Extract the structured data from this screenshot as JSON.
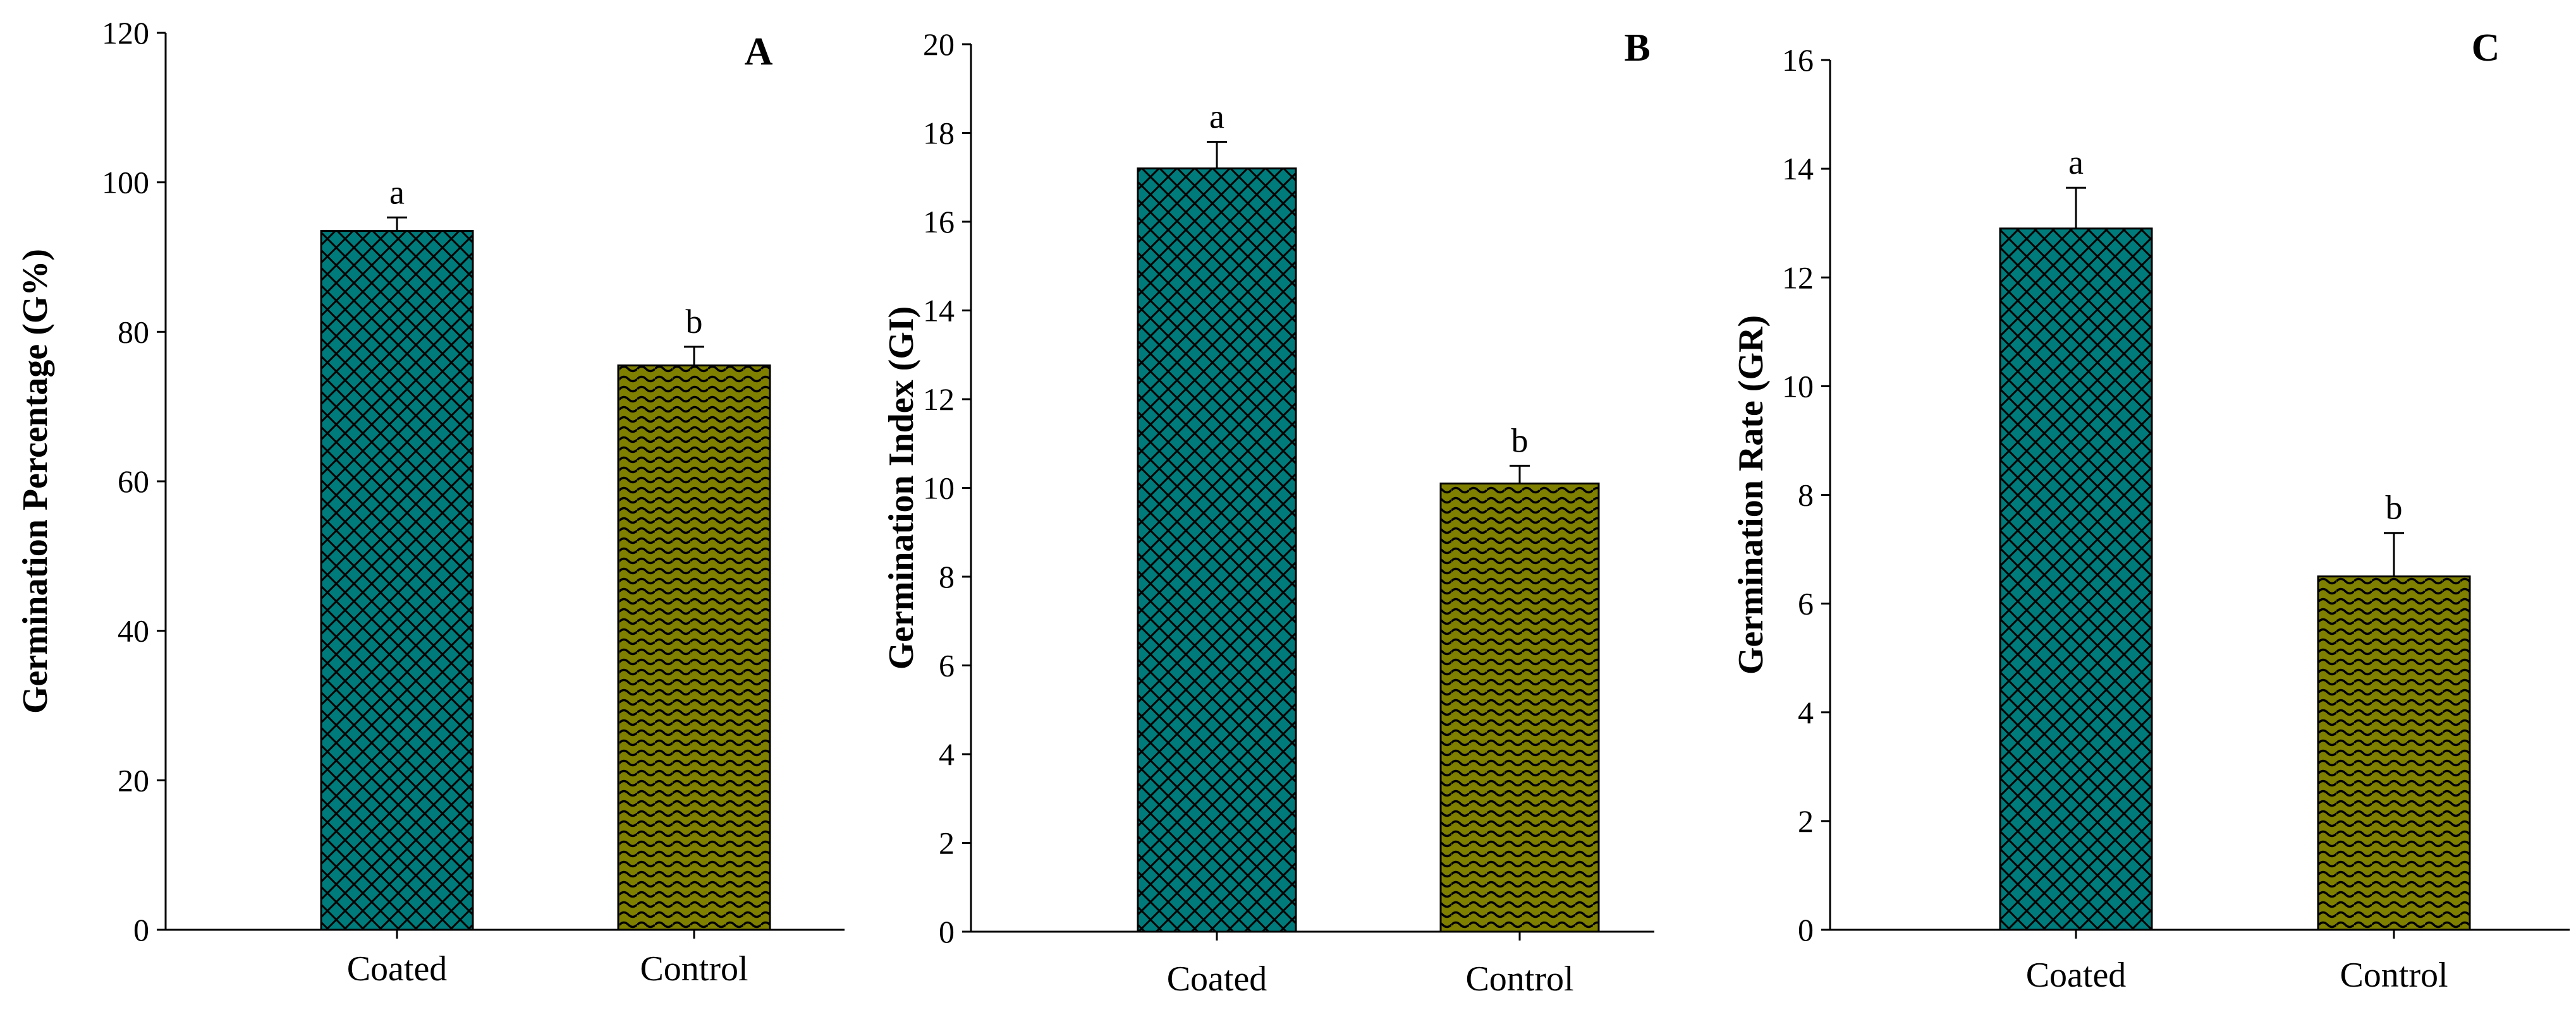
{
  "colors": {
    "coated_fill": "#007b7b",
    "control_fill": "#7f7f00",
    "pattern_line": "#000000",
    "axis": "#000000"
  },
  "chart_data": [
    {
      "type": "bar",
      "panel_label": "A",
      "ylabel": "Germination Percentage (G%)",
      "xlabel": "",
      "categories": [
        "Coated",
        "Control"
      ],
      "values": [
        93.5,
        75.5
      ],
      "errors": [
        1.8,
        2.5
      ],
      "significance": [
        "a",
        "b"
      ],
      "ylim": [
        0,
        120
      ],
      "ytick_step": 20,
      "yticks": [
        "0",
        "20",
        "40",
        "60",
        "80",
        "100",
        "120"
      ],
      "patterns": [
        "crosshatch",
        "wave"
      ]
    },
    {
      "type": "bar",
      "panel_label": "B",
      "ylabel": "Germination Index (GI)",
      "xlabel": "",
      "categories": [
        "Coated",
        "Control"
      ],
      "values": [
        17.2,
        10.1
      ],
      "errors": [
        0.6,
        0.4
      ],
      "significance": [
        "a",
        "b"
      ],
      "ylim": [
        0,
        20
      ],
      "ytick_step": 2,
      "yticks": [
        "0",
        "2",
        "4",
        "6",
        "8",
        "10",
        "12",
        "14",
        "16",
        "18",
        "20"
      ],
      "patterns": [
        "crosshatch",
        "wave"
      ]
    },
    {
      "type": "bar",
      "panel_label": "C",
      "ylabel": "Germination Rate (GR)",
      "xlabel": "",
      "categories": [
        "Coated",
        "Control"
      ],
      "values": [
        12.9,
        6.5
      ],
      "errors": [
        0.75,
        0.8
      ],
      "significance": [
        "a",
        "b"
      ],
      "ylim": [
        0,
        16
      ],
      "ytick_step": 2,
      "yticks": [
        "0",
        "2",
        "4",
        "6",
        "8",
        "10",
        "12",
        "14",
        "16"
      ],
      "patterns": [
        "crosshatch",
        "wave"
      ]
    }
  ]
}
